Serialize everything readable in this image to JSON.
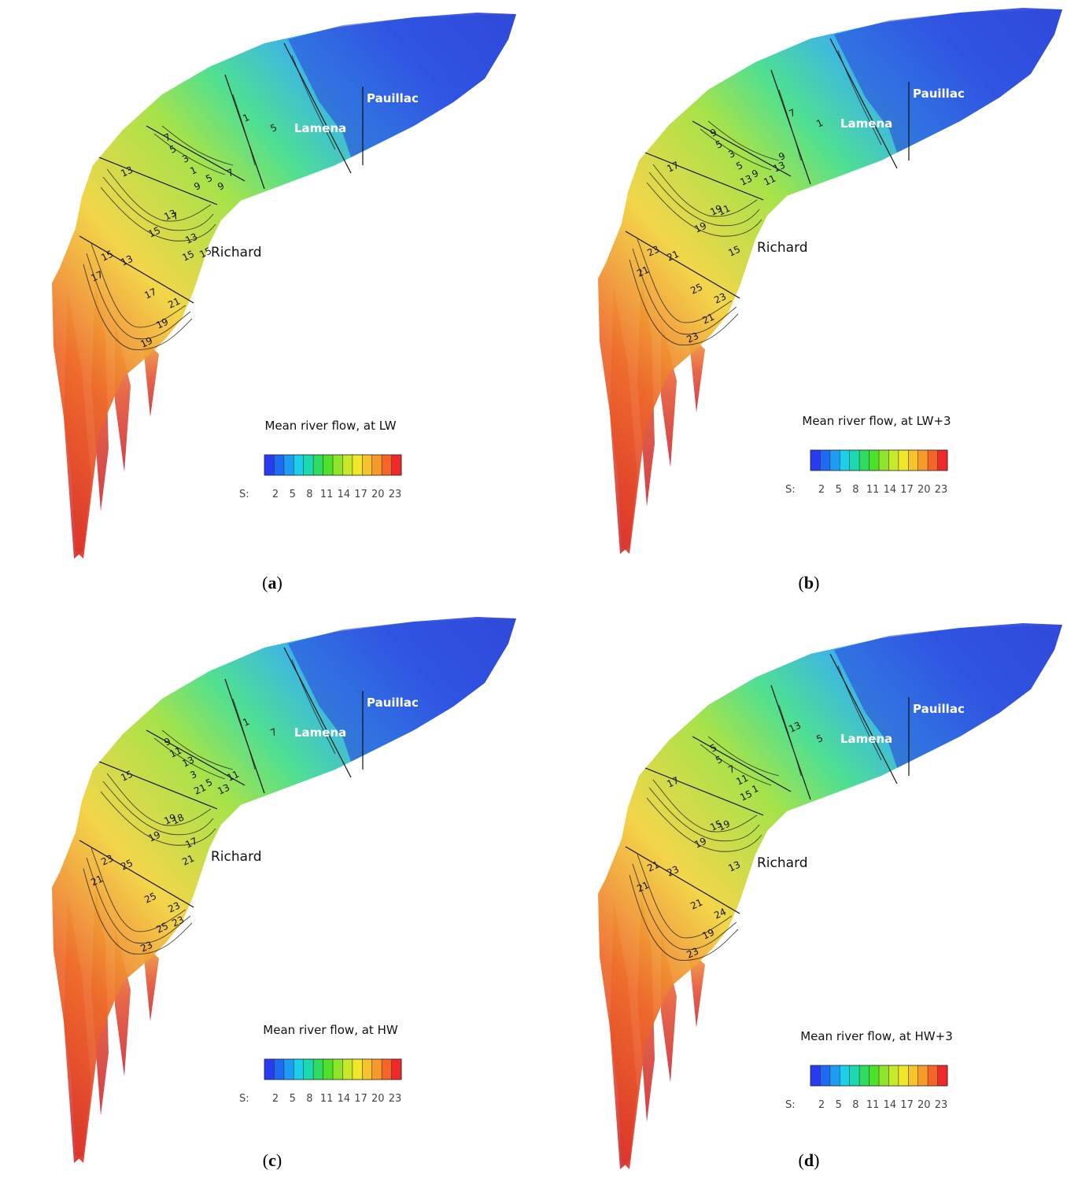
{
  "panels": [
    {
      "id": "a",
      "caption": "a",
      "legend_title": "Mean river flow, at LW",
      "locations": [
        "Richard",
        "Lamena",
        "Pauillac"
      ],
      "mid": [
        "7",
        "5",
        "3",
        "1",
        "1",
        "5",
        "5",
        "9",
        "7"
      ],
      "front": [
        "13",
        "15",
        "13",
        "15",
        "9",
        "7",
        "13",
        "15"
      ],
      "lower": [
        "17",
        "15",
        "13",
        "19",
        "17",
        "21",
        "19"
      ]
    },
    {
      "id": "b",
      "caption": "b",
      "legend_title": "Mean river flow, at LW+3",
      "locations": [
        "Richard",
        "Lamena",
        "Pauillac"
      ],
      "mid": [
        "9",
        "5",
        "3",
        "5",
        "7",
        "1",
        "9",
        "11",
        "13",
        "9"
      ],
      "front": [
        "17",
        "19",
        "19",
        "15",
        "13",
        "11"
      ],
      "lower": [
        "21",
        "23",
        "21",
        "23",
        "25",
        "23",
        "21"
      ]
    },
    {
      "id": "c",
      "caption": "c",
      "legend_title": "Mean river flow, at HW",
      "locations": [
        "Richard",
        "Lamena",
        "Pauillac"
      ],
      "mid": [
        "9",
        "11",
        "13",
        "3",
        "1",
        "7",
        "5",
        "13",
        "11"
      ],
      "front": [
        "15",
        "19",
        "19",
        "21",
        "21",
        "18",
        "17"
      ],
      "lower": [
        "21",
        "23",
        "25",
        "23",
        "25",
        "23",
        "25",
        "23"
      ]
    },
    {
      "id": "d",
      "caption": "d",
      "legend_title": "Mean river flow, at HW+3",
      "locations": [
        "Richard",
        "Lamena",
        "Pauillac"
      ],
      "mid": [
        "5",
        "5",
        "7",
        "11",
        "13",
        "5",
        "1"
      ],
      "front": [
        "17",
        "19",
        "15",
        "13",
        "15",
        "19"
      ],
      "lower": [
        "21",
        "21",
        "23",
        "23",
        "21",
        "24",
        "19"
      ]
    }
  ],
  "colorbar": {
    "prefix": "S:",
    "ticks": [
      "2",
      "5",
      "8",
      "11",
      "14",
      "17",
      "20",
      "23"
    ],
    "colors": [
      "#2a3cf0",
      "#1f6af5",
      "#1c9cf5",
      "#1ccfe8",
      "#1cd8b0",
      "#30dc60",
      "#4ee12a",
      "#8fe52a",
      "#c8e82a",
      "#f0e62a",
      "#f6c42a",
      "#f89a2a",
      "#f5652a",
      "#ee2a2a"
    ]
  }
}
